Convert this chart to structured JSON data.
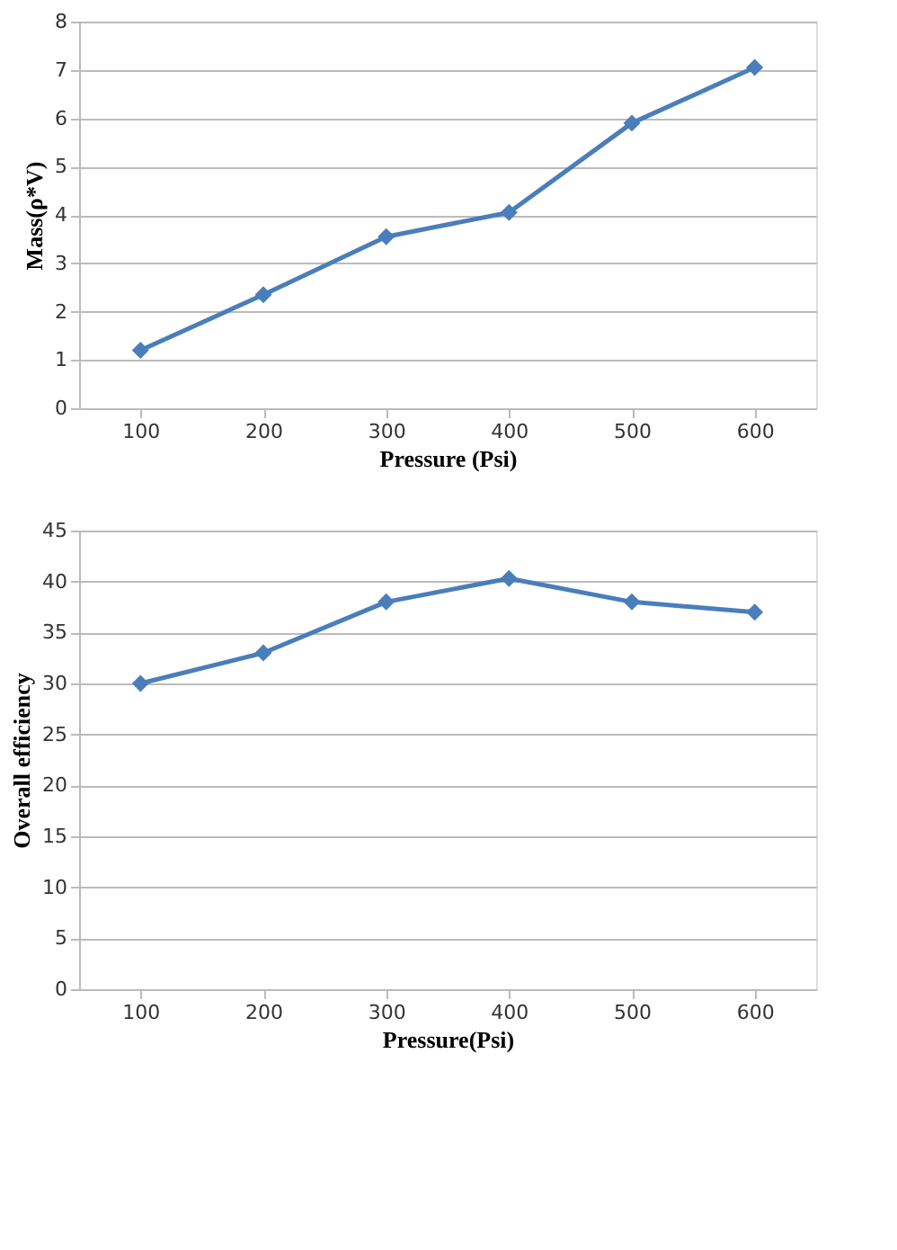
{
  "chart_data": [
    {
      "type": "line",
      "xlabel": "Pressure (Psi)",
      "ylabel": "Mass(ρ*V)",
      "categories": [
        "100",
        "200",
        "300",
        "400",
        "500",
        "600"
      ],
      "series": [
        {
          "color": "#4a7ebb",
          "values": [
            1.2,
            2.35,
            3.55,
            4.05,
            5.9,
            7.05
          ]
        }
      ],
      "ylim": [
        0,
        8
      ],
      "yticks": [
        0,
        1,
        2,
        3,
        4,
        5,
        6,
        7,
        8
      ],
      "grid": "y",
      "marker": "diamond",
      "line_style": "solid"
    },
    {
      "type": "line",
      "xlabel": "Pressure(Psi)",
      "ylabel": "Overall efficiency",
      "categories": [
        "100",
        "200",
        "300",
        "400",
        "500",
        "600"
      ],
      "series": [
        {
          "color": "#4a7ebb",
          "values": [
            30,
            33,
            38,
            40.3,
            38,
            37
          ]
        }
      ],
      "ylim": [
        0,
        45
      ],
      "yticks": [
        0,
        5,
        10,
        15,
        20,
        25,
        30,
        35,
        40,
        45
      ],
      "grid": "y",
      "marker": "diamond",
      "line_style": "solid"
    }
  ]
}
